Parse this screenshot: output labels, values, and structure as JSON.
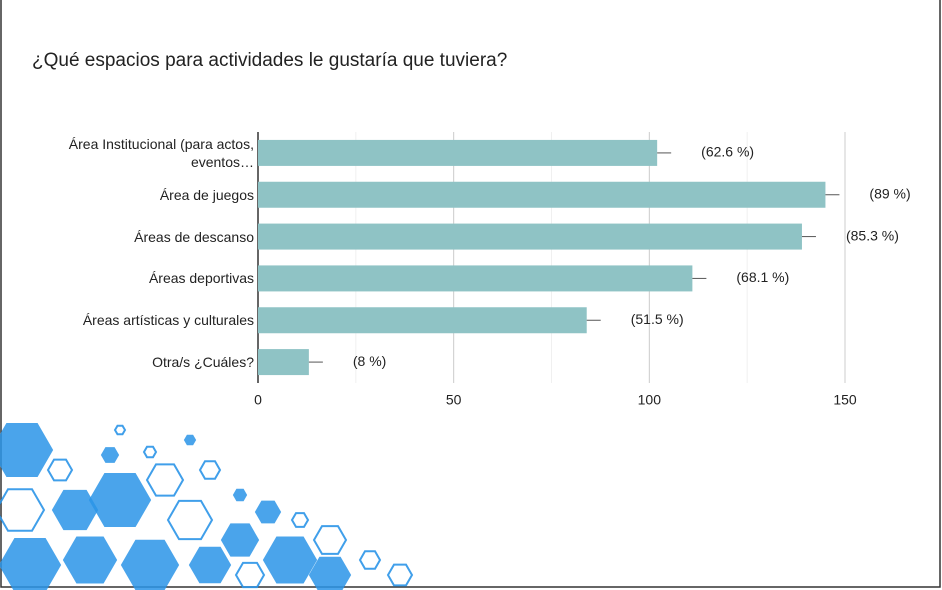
{
  "chart_data": {
    "type": "hbar",
    "title": "¿Qué espacios para actividades le gustaría que tuviera?",
    "categories": [
      "Área Institucional (para actos, eventos…",
      "Área de juegos",
      "Áreas de descanso",
      "Áreas deportivas",
      "Áreas artísticas y culturales",
      "Otra/s ¿Cuáles?"
    ],
    "values": [
      102,
      145,
      139,
      111,
      84,
      13
    ],
    "annotations": [
      "(62.6 %)",
      "(89 %)",
      "(85.3 %)",
      "(68.1 %)",
      "(51.5 %)",
      "(8 %)"
    ],
    "color": "#8fc3c5",
    "xlim": [
      0,
      150
    ],
    "xticks": [
      0,
      50,
      100,
      150
    ],
    "minor_xticks": [
      25,
      75,
      125
    ],
    "grid": true
  }
}
